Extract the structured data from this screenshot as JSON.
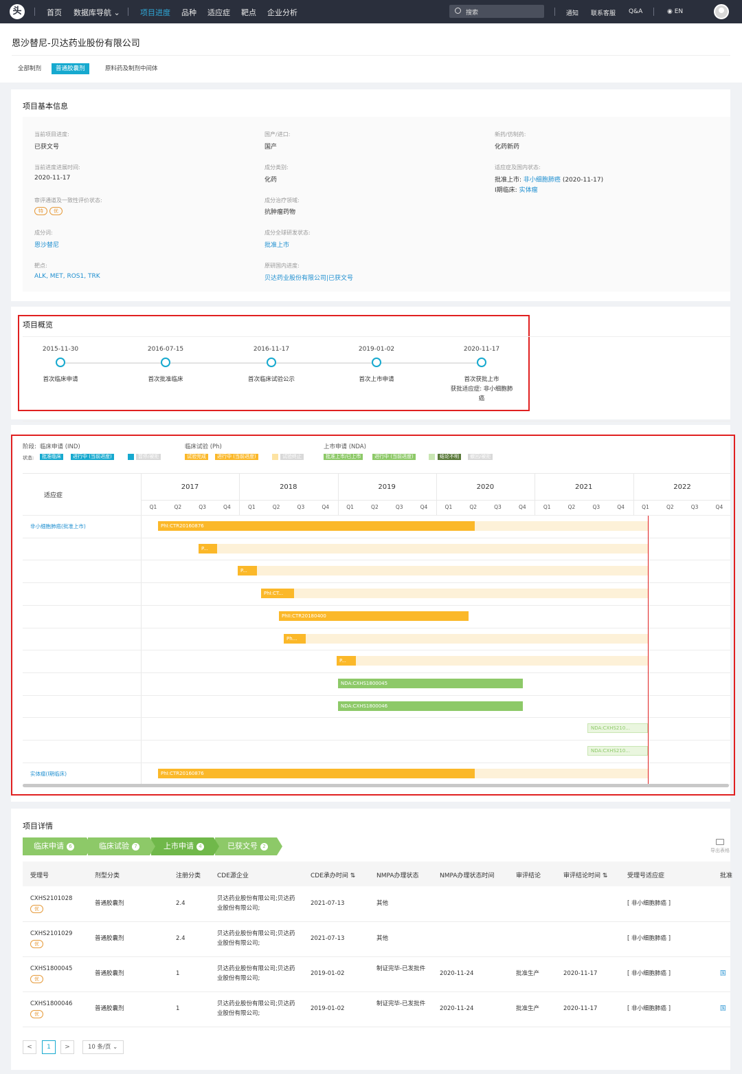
{
  "nav": {
    "logo": "头",
    "items": [
      "首页",
      "数据库导航 ⌄",
      "项目进度",
      "品种",
      "适应症",
      "靶点",
      "企业分析"
    ],
    "search_placeholder": "搜索",
    "right": [
      "通知",
      "联系客服",
      "Q&A",
      "EN"
    ]
  },
  "company": {
    "name": "恩沙替尼-贝达药业股份有限公司",
    "tabs": [
      "全部制剂",
      "普通胶囊剂",
      "原料药及制剂中间体"
    ]
  },
  "basic": {
    "title": "项目基本信息",
    "fields": [
      {
        "label": "当前项目进度:",
        "value": "已获文号"
      },
      {
        "label": "国产/进口:",
        "value": "国产"
      },
      {
        "label": "新药/仿制药:",
        "value": "化药新药"
      },
      {
        "label": "当前进度进展时间:",
        "value": "2020-11-17"
      },
      {
        "label": "成分类别:",
        "value": "化药"
      },
      {
        "label": "适应症及国内状态:",
        "value": ""
      },
      {
        "label": "审评通道及一致性评价状态:",
        "value": ""
      },
      {
        "label": "成分治疗领域:",
        "value": "抗肿瘤药物"
      },
      {
        "label": "成分词:",
        "value": "恩沙替尼"
      },
      {
        "label": "成分全球研发状态:",
        "value": "批准上市"
      },
      {
        "label": "靶点:",
        "value": "ALK, MET, ROS1, TRK"
      },
      {
        "label": "原研国内进度:",
        "value": "贝达药业股份有限公司|已获文号"
      }
    ],
    "badges": [
      "特",
      "优"
    ],
    "indication_line1_prefix": "批准上市:",
    "indication_line1_link": "非小细胞肺癌",
    "indication_line1_suffix": "(2020-11-17)",
    "indication_line2_prefix": "I期临床:",
    "indication_line2_link": "实体瘤"
  },
  "overview": {
    "title": "项目概览",
    "milestones": [
      {
        "date": "2015-11-30",
        "label": "首次临床申请"
      },
      {
        "date": "2016-07-15",
        "label": "首次批准临床"
      },
      {
        "date": "2016-11-17",
        "label": "首次临床试验公示"
      },
      {
        "date": "2019-01-02",
        "label": "首次上市申请"
      },
      {
        "date": "2020-11-17",
        "label": "首次获批上市",
        "label2": "获批适应症: 非小细胞肺",
        "label3": "癌"
      }
    ]
  },
  "gantt": {
    "stage_label": "阶段:",
    "status_label": "状态:",
    "stages": [
      "临床申请 (IND)",
      "临床试验 (Ph)",
      "上市申请 (NDA)"
    ],
    "chips": [
      {
        "text": "批准临床",
        "color": "#16a9cf"
      },
      {
        "text": "进行中 (当前进度)",
        "color": "#16a9cf"
      },
      {
        "text": "",
        "color": "#16a9cf"
      },
      {
        "text": "暂停/被拒",
        "color": "#d9d9d9"
      },
      {
        "text": "试验完成",
        "color": "#fbb829"
      },
      {
        "text": "进行中 (当前进度)",
        "color": "#fbb829"
      },
      {
        "text": "",
        "color": "#fde3a3"
      },
      {
        "text": "试验终止",
        "color": "#d9d9d9"
      },
      {
        "text": "批准上市/已上市",
        "color": "#8dc968"
      },
      {
        "text": "进行中 (当前进度)",
        "color": "#8dc968"
      },
      {
        "text": "",
        "color": "#c9e6b3"
      },
      {
        "text": "结论不明",
        "color": "#5a7a3a"
      },
      {
        "text": "撤回/被拒",
        "color": "#d9d9d9"
      }
    ],
    "indication_header": "适应症",
    "years": [
      "2017",
      "2018",
      "2019",
      "2020",
      "2021",
      "2022"
    ],
    "quarters": [
      "Q1",
      "Q2",
      "Q3",
      "Q4"
    ],
    "rows": [
      {
        "label": "非小细胞肺癌(批准上市)",
        "bar": "PhI:CTR20160876"
      },
      {
        "label": "",
        "bar": "P..."
      },
      {
        "label": "",
        "bar": "P..."
      },
      {
        "label": "",
        "bar": "PhI:CT..."
      },
      {
        "label": "",
        "bar": "PhII:CTR20180400"
      },
      {
        "label": "",
        "bar": "Ph..."
      },
      {
        "label": "",
        "bar": "P..."
      },
      {
        "label": "",
        "bar": "NDA:CXHS1800045"
      },
      {
        "label": "",
        "bar": "NDA:CXHS1800046"
      },
      {
        "label": "",
        "bar": "NDA:CXHS210..."
      },
      {
        "label": "",
        "bar": "NDA:CXHS210..."
      },
      {
        "label": "实体瘤(I期临床)",
        "bar": "PhI:CTR20160876"
      }
    ]
  },
  "details": {
    "title": "项目详情",
    "steps": [
      {
        "label": "临床申请",
        "count": "6"
      },
      {
        "label": "临床试验",
        "count": "7"
      },
      {
        "label": "上市申请",
        "count": "4"
      },
      {
        "label": "已获文号",
        "count": "2"
      }
    ],
    "export_label": "导出表格",
    "columns": [
      "受理号",
      "剂型分类",
      "注册分类",
      "CDE源企业",
      "CDE承办时间 ⇅",
      "NMPA办理状态",
      "NMPA办理状态时间",
      "审评结论",
      "审评结论时间 ⇅",
      "受理号适应症",
      "批准"
    ],
    "rows": [
      {
        "id": "CXHS2101028",
        "badge": "优",
        "form": "普通胶囊剂",
        "reg": "2.4",
        "company": "贝达药业股份有限公司;贝达药业股份有限公司;",
        "cde_time": "2021-07-13",
        "status": "其他",
        "status_time": "",
        "conclusion": "",
        "conclusion_time": "",
        "indication": "[ 非小细胞肺癌 ]",
        "approval": ""
      },
      {
        "id": "CXHS2101029",
        "badge": "优",
        "form": "普通胶囊剂",
        "reg": "2.4",
        "company": "贝达药业股份有限公司;贝达药业股份有限公司;",
        "cde_time": "2021-07-13",
        "status": "其他",
        "status_time": "",
        "conclusion": "",
        "conclusion_time": "",
        "indication": "[ 非小细胞肺癌 ]",
        "approval": ""
      },
      {
        "id": "CXHS1800045",
        "badge": "优",
        "form": "普通胶囊剂",
        "reg": "1",
        "company": "贝达药业股份有限公司;贝达药业股份有限公司;",
        "cde_time": "2019-01-02",
        "status": "制证完毕-已发批件",
        "status_time": "2020-11-24",
        "conclusion": "批准生产",
        "conclusion_time": "2020-11-17",
        "indication": "[ 非小细胞肺癌 ]",
        "approval": "国药"
      },
      {
        "id": "CXHS1800046",
        "badge": "优",
        "form": "普通胶囊剂",
        "reg": "1",
        "company": "贝达药业股份有限公司;贝达药业股份有限公司;",
        "cde_time": "2019-01-02",
        "status": "制证完毕-已发批件",
        "status_time": "2020-11-24",
        "conclusion": "批准生产",
        "conclusion_time": "2020-11-17",
        "indication": "[ 非小细胞肺癌 ]",
        "approval": "国药"
      }
    ],
    "pager": {
      "prev": "<",
      "page": "1",
      "next": ">",
      "size": "10 条/页 ⌄"
    }
  }
}
